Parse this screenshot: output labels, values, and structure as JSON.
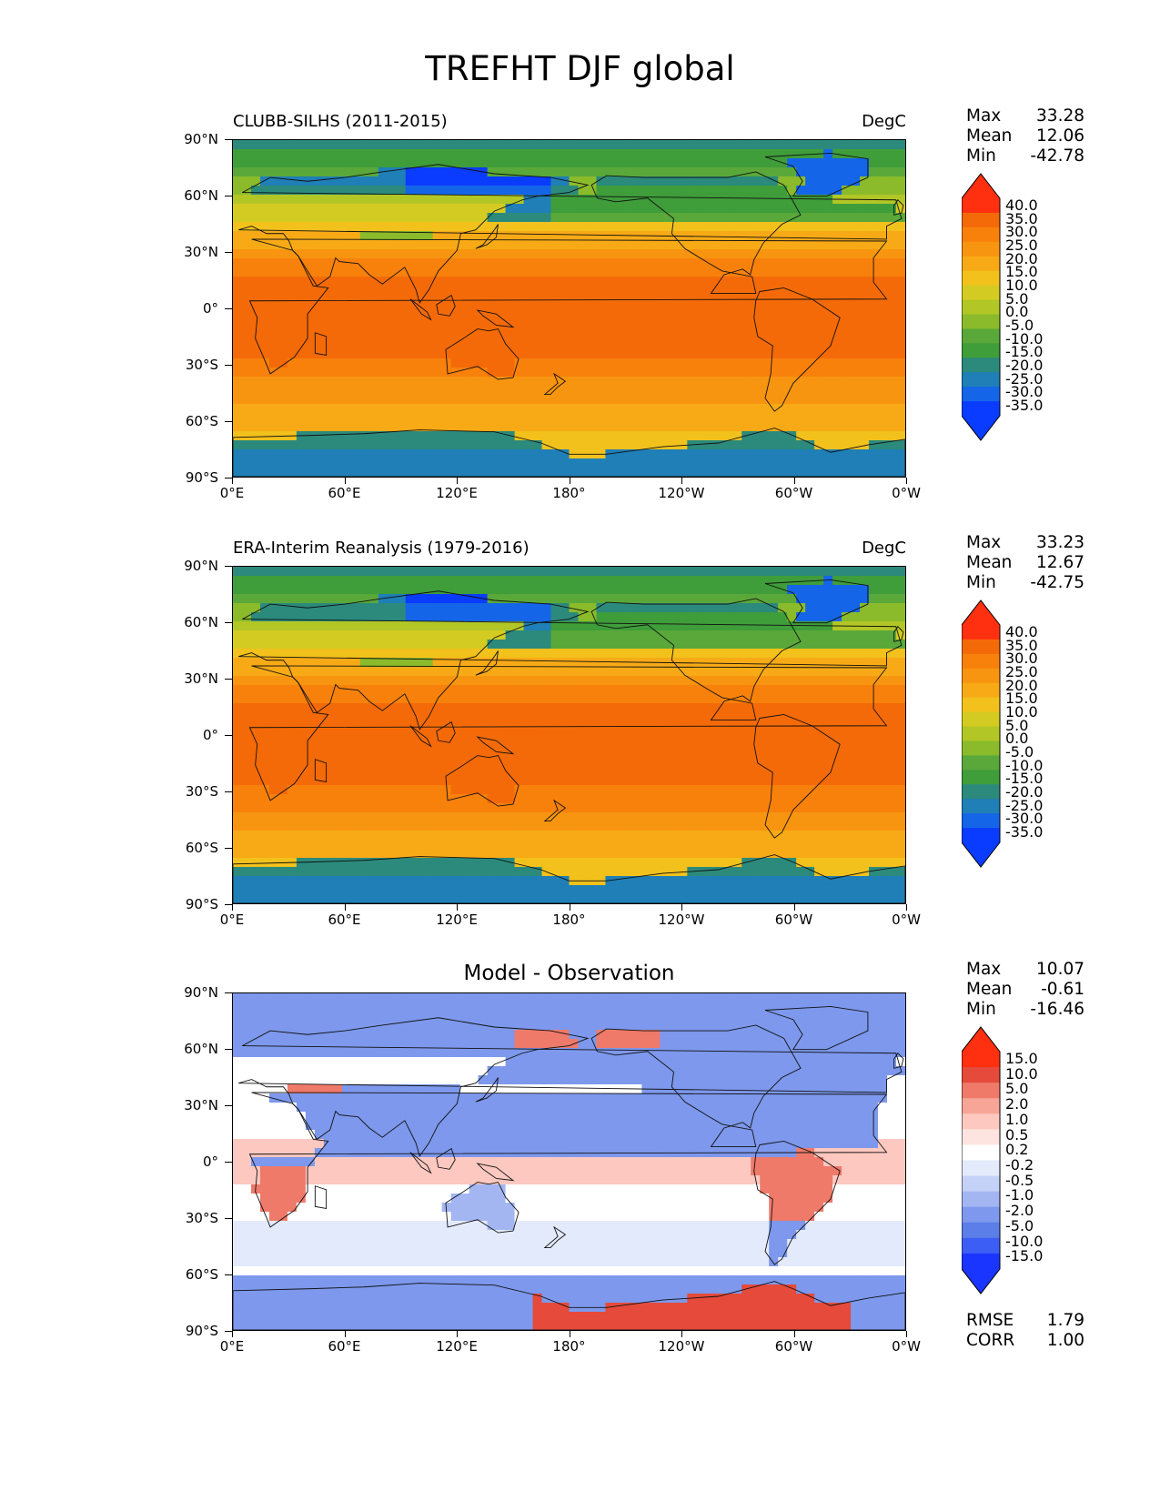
{
  "suptitle": "TREFHT DJF global",
  "ylabels": [
    "90°N",
    "60°N",
    "30°N",
    "0°",
    "30°S",
    "60°S",
    "90°S"
  ],
  "xlabels": [
    "0°E",
    "60°E",
    "120°E",
    "180°",
    "120°W",
    "60°W",
    "0°W"
  ],
  "colors": {
    "temp_levels": [
      "#0a3cff",
      "#1565e8",
      "#1f7fb6",
      "#2b8a7c",
      "#3f9d3a",
      "#5aa83a",
      "#8bbb2a",
      "#b2c626",
      "#d4cb22",
      "#f2c11c",
      "#f7aa16",
      "#f89510",
      "#f8810c",
      "#f46a08",
      "#ff3010"
    ],
    "diff_levels": [
      "#1a35ff",
      "#3d5ef5",
      "#5b7ee8",
      "#7d98ec",
      "#a4b6f2",
      "#c5d2f7",
      "#e3eafb",
      "#ffffff",
      "#fde4e0",
      "#fcc8c0",
      "#f7a597",
      "#ef7a6a",
      "#e64a3a",
      "#ff3010"
    ]
  },
  "panels": [
    {
      "title_left": "CLUBB-SILHS (2011-2015)",
      "title_right": "DegC",
      "stats": {
        "max_label": "Max",
        "max": "33.28",
        "mean_label": "Mean",
        "mean": "12.06",
        "min_label": "Min",
        "min": "-42.78"
      },
      "colorbar_labels": [
        "40.0",
        "35.0",
        "30.0",
        "25.0",
        "20.0",
        "15.0",
        "10.0",
        "5.0",
        "0.0",
        "-5.0",
        "-10.0",
        "-15.0",
        "-20.0",
        "-25.0",
        "-30.0",
        "-35.0"
      ],
      "field": "temperature"
    },
    {
      "title_left": "ERA-Interim Reanalysis (1979-2016)",
      "title_right": "DegC",
      "stats": {
        "max_label": "Max",
        "max": "33.23",
        "mean_label": "Mean",
        "mean": "12.67",
        "min_label": "Min",
        "min": "-42.75"
      },
      "colorbar_labels": [
        "40.0",
        "35.0",
        "30.0",
        "25.0",
        "20.0",
        "15.0",
        "10.0",
        "5.0",
        "0.0",
        "-5.0",
        "-10.0",
        "-15.0",
        "-20.0",
        "-25.0",
        "-30.0",
        "-35.0"
      ],
      "field": "temperature"
    },
    {
      "title_center": "Model - Observation",
      "stats": {
        "max_label": "Max",
        "max": "10.07",
        "mean_label": "Mean",
        "mean": "-0.61",
        "min_label": "Min",
        "min": "-16.46"
      },
      "colorbar_labels": [
        "15.0",
        "10.0",
        "5.0",
        "2.0",
        "1.0",
        "0.5",
        "0.2",
        "-0.2",
        "-0.5",
        "-1.0",
        "-2.0",
        "-5.0",
        "-10.0",
        "-15.0"
      ],
      "metrics": {
        "rmse_label": "RMSE",
        "rmse": "1.79",
        "corr_label": "CORR",
        "corr": "1.00"
      },
      "field": "difference"
    }
  ]
}
